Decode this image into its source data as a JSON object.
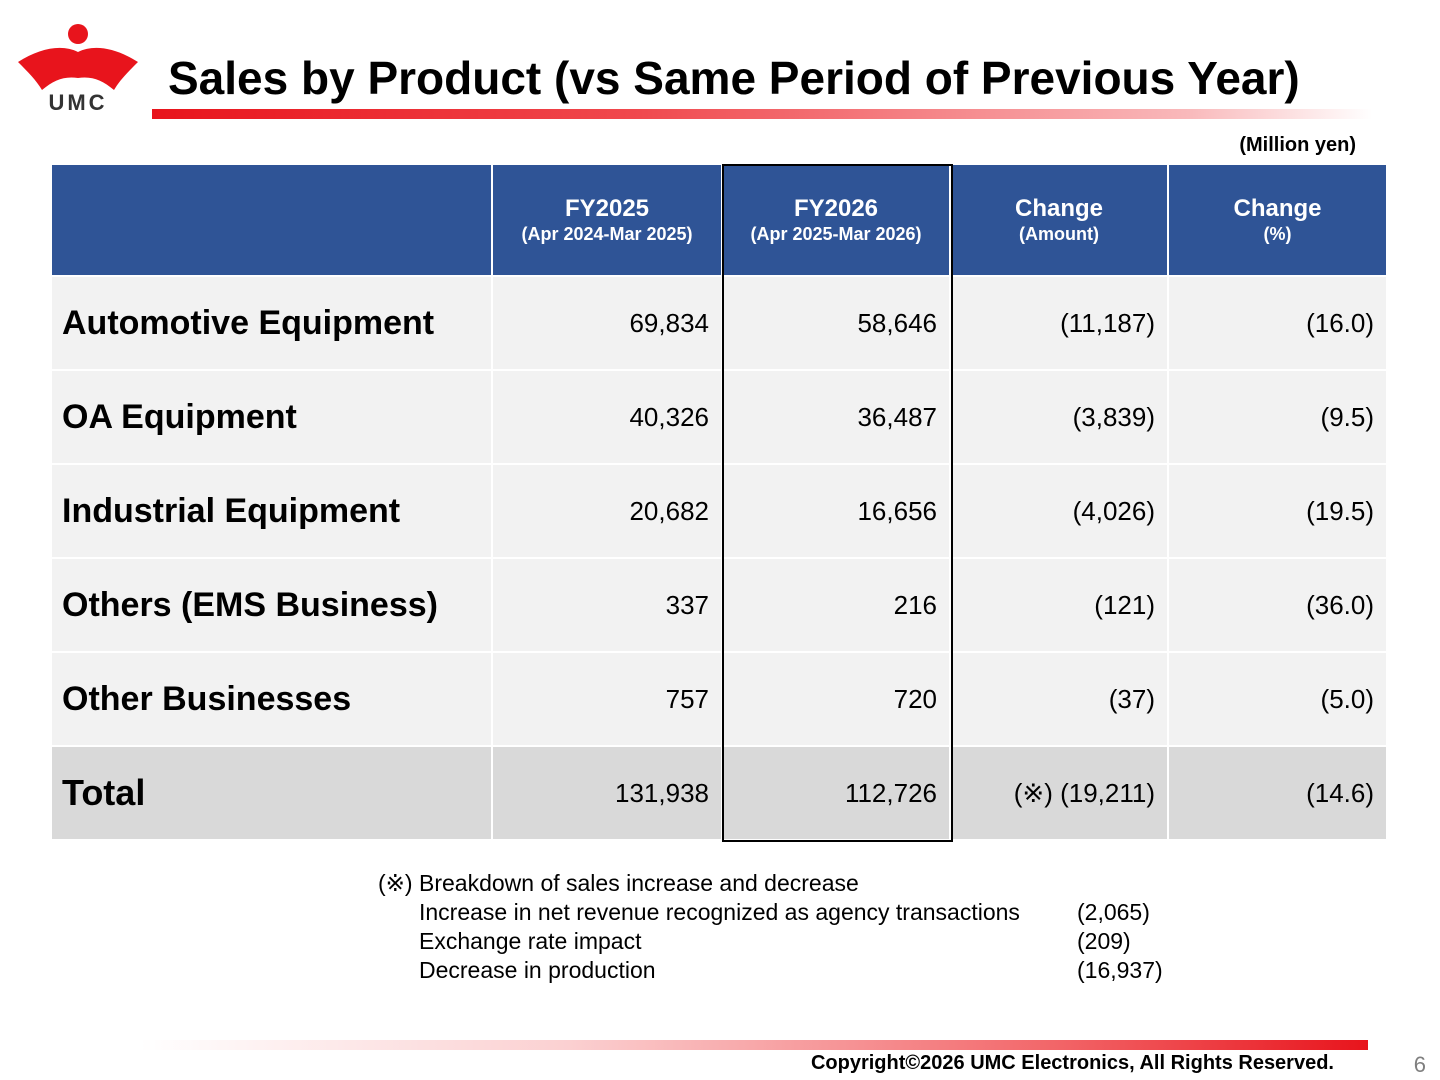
{
  "header": {
    "logo_text": "UMC",
    "title": "Sales by Product (vs Same Period of Previous Year)",
    "unit_note": "(Million yen)"
  },
  "colors": {
    "brand_red": "#e8141c",
    "header_blue": "#2f5496",
    "row_grey": "#f2f2f2",
    "total_grey": "#d9d9d9"
  },
  "table": {
    "columns": [
      {
        "title": "",
        "sub": ""
      },
      {
        "title": "FY2025",
        "sub": "(Apr 2024-Mar 2025)"
      },
      {
        "title": "FY2026",
        "sub": "(Apr 2025-Mar 2026)"
      },
      {
        "title": "Change",
        "sub": "(Amount)"
      },
      {
        "title": "Change",
        "sub": "(%)"
      }
    ],
    "rows": [
      {
        "label": "Automotive Equipment",
        "fy2025": "69,834",
        "fy2026": "58,646",
        "change_amount": "(11,187)",
        "change_pct": "(16.0)"
      },
      {
        "label": "OA Equipment",
        "fy2025": "40,326",
        "fy2026": "36,487",
        "change_amount": "(3,839)",
        "change_pct": "(9.5)"
      },
      {
        "label": "Industrial Equipment",
        "fy2025": "20,682",
        "fy2026": "16,656",
        "change_amount": "(4,026)",
        "change_pct": "(19.5)"
      },
      {
        "label": "Others (EMS Business)",
        "fy2025": "337",
        "fy2026": "216",
        "change_amount": "(121)",
        "change_pct": "(36.0)"
      },
      {
        "label": "Other Businesses",
        "fy2025": "757",
        "fy2026": "720",
        "change_amount": "(37)",
        "change_pct": "(5.0)"
      }
    ],
    "total": {
      "label": "Total",
      "fy2025": "131,938",
      "fy2026": "112,726",
      "change_amount": "(※) (19,211)",
      "change_pct": "(14.6)"
    }
  },
  "notes": {
    "heading": "(※) Breakdown of sales increase and decrease",
    "items": [
      {
        "label": "Increase in net revenue recognized as agency transactions",
        "value": "(2,065)"
      },
      {
        "label": "Exchange rate impact",
        "value": "(209)"
      },
      {
        "label": "Decrease in production",
        "value": "(16,937)"
      }
    ]
  },
  "footer": {
    "copyright": "Copyright©2026 UMC Electronics, All Rights Reserved.",
    "page_number": "6"
  }
}
